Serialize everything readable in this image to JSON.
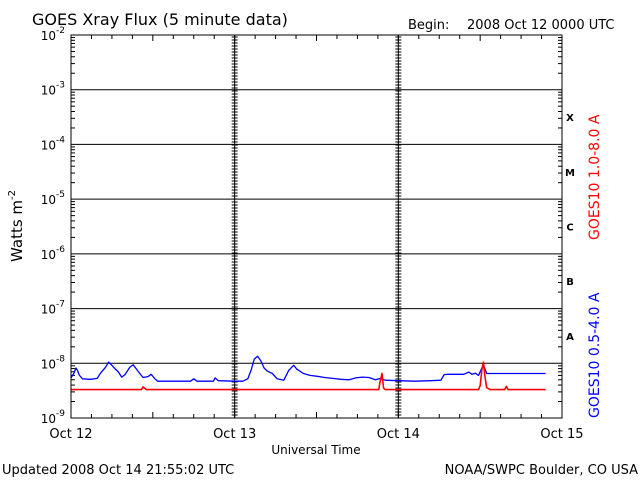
{
  "header": {
    "title": "GOES Xray Flux (5 minute data)",
    "begin_label": "Begin:",
    "begin_value": "2008 Oct 12 0000 UTC"
  },
  "footer": {
    "updated": "Updated 2008 Oct 14 21:55:02 UTC",
    "credit": "NOAA/SWPC Boulder, CO USA"
  },
  "colors": {
    "long_channel": "#ff0000",
    "short_channel": "#0000ff",
    "grid": "#000000"
  },
  "chart_data": {
    "type": "line",
    "title": "GOES Xray Flux (5 minute data)",
    "xlabel": "Universal Time",
    "ylabel_base": "Watts m",
    "ylabel_exp": "-2",
    "y_scale": "log",
    "ylim": [
      1e-09,
      0.01
    ],
    "xlim": [
      "2008-10-12 00:00",
      "2008-10-15 00:00"
    ],
    "x_ticks": [
      {
        "label": "Oct 12",
        "day": 12
      },
      {
        "label": "Oct 13",
        "day": 13
      },
      {
        "label": "Oct 14",
        "day": 14
      },
      {
        "label": "Oct 15",
        "day": 15
      }
    ],
    "y_ticks": [
      {
        "base": "10",
        "exp": "-2",
        "value": 0.01
      },
      {
        "base": "10",
        "exp": "-3",
        "value": 0.001
      },
      {
        "base": "10",
        "exp": "-4",
        "value": 0.0001
      },
      {
        "base": "10",
        "exp": "-5",
        "value": 1e-05
      },
      {
        "base": "10",
        "exp": "-6",
        "value": 1e-06
      },
      {
        "base": "10",
        "exp": "-7",
        "value": 1e-07
      },
      {
        "base": "10",
        "exp": "-8",
        "value": 1e-08
      },
      {
        "base": "10",
        "exp": "-9",
        "value": 1e-09
      }
    ],
    "flare_classes": [
      {
        "label": "X",
        "low": 0.0001,
        "high": 0.001
      },
      {
        "label": "M",
        "low": 1e-05,
        "high": 0.0001
      },
      {
        "label": "C",
        "low": 1e-06,
        "high": 1e-05
      },
      {
        "label": "B",
        "low": 1e-07,
        "high": 1e-06
      },
      {
        "label": "A",
        "low": 1e-08,
        "high": 1e-07
      }
    ],
    "grid": true,
    "series": [
      {
        "name": "GOES10 1.0-8.0 A",
        "color": "#ff0000",
        "points": [
          [
            12.0,
            3.3e-09
          ],
          [
            12.43,
            3.3e-09
          ],
          [
            12.44,
            3.7e-09
          ],
          [
            12.46,
            3.3e-09
          ],
          [
            13.88,
            3.3e-09
          ],
          [
            13.89,
            4.8e-09
          ],
          [
            13.9,
            6.5e-09
          ],
          [
            13.91,
            3.5e-09
          ],
          [
            13.92,
            3.3e-09
          ],
          [
            14.49,
            3.3e-09
          ],
          [
            14.5,
            3.9e-09
          ],
          [
            14.51,
            7.5e-09
          ],
          [
            14.52,
            1.05e-08
          ],
          [
            14.53,
            5.5e-09
          ],
          [
            14.54,
            3.6e-09
          ],
          [
            14.56,
            3.3e-09
          ],
          [
            14.65,
            3.3e-09
          ],
          [
            14.66,
            3.8e-09
          ],
          [
            14.67,
            3.3e-09
          ],
          [
            14.9,
            3.3e-09
          ]
        ]
      },
      {
        "name": "GOES10 0.5-4.0 A",
        "color": "#0000ff",
        "points": [
          [
            12.0,
            5.4e-09
          ],
          [
            12.02,
            6.8e-09
          ],
          [
            12.03,
            8.2e-09
          ],
          [
            12.04,
            7.4e-09
          ],
          [
            12.05,
            6.1e-09
          ],
          [
            12.07,
            5.2e-09
          ],
          [
            12.12,
            5.1e-09
          ],
          [
            12.16,
            5.3e-09
          ],
          [
            12.18,
            6.6e-09
          ],
          [
            12.21,
            8.4e-09
          ],
          [
            12.23,
            1.05e-08
          ],
          [
            12.25,
            9.2e-09
          ],
          [
            12.27,
            7.9e-09
          ],
          [
            12.29,
            6.9e-09
          ],
          [
            12.31,
            5.6e-09
          ],
          [
            12.33,
            6.2e-09
          ],
          [
            12.36,
            8.5e-09
          ],
          [
            12.38,
            9.4e-09
          ],
          [
            12.41,
            7.1e-09
          ],
          [
            12.44,
            5.5e-09
          ],
          [
            12.47,
            5.7e-09
          ],
          [
            12.49,
            6.3e-09
          ],
          [
            12.51,
            5.3e-09
          ],
          [
            12.53,
            4.7e-09
          ],
          [
            12.73,
            4.7e-09
          ],
          [
            12.75,
            5.2e-09
          ],
          [
            12.77,
            4.7e-09
          ],
          [
            12.87,
            4.7e-09
          ],
          [
            12.88,
            5.4e-09
          ],
          [
            12.9,
            4.8e-09
          ],
          [
            13.0,
            4.7e-09
          ],
          [
            13.05,
            4.7e-09
          ],
          [
            13.08,
            5.2e-09
          ],
          [
            13.1,
            7.4e-09
          ],
          [
            13.12,
            1.2e-08
          ],
          [
            13.14,
            1.35e-08
          ],
          [
            13.16,
            1.1e-08
          ],
          [
            13.18,
            8.2e-09
          ],
          [
            13.2,
            7.2e-09
          ],
          [
            13.23,
            6.5e-09
          ],
          [
            13.26,
            5.2e-09
          ],
          [
            13.3,
            4.9e-09
          ],
          [
            13.33,
            7.4e-09
          ],
          [
            13.36,
            9.2e-09
          ],
          [
            13.38,
            7.8e-09
          ],
          [
            13.42,
            6.5e-09
          ],
          [
            13.46,
            6e-09
          ],
          [
            13.5,
            5.8e-09
          ],
          [
            13.55,
            5.5e-09
          ],
          [
            13.6,
            5.3e-09
          ],
          [
            13.65,
            5.1e-09
          ],
          [
            13.7,
            5e-09
          ],
          [
            13.74,
            5.4e-09
          ],
          [
            13.78,
            5.6e-09
          ],
          [
            13.82,
            5.5e-09
          ],
          [
            13.86,
            5e-09
          ],
          [
            13.89,
            5.3e-09
          ],
          [
            13.92,
            4.9e-09
          ],
          [
            14.0,
            4.8e-09
          ],
          [
            14.1,
            4.7e-09
          ],
          [
            14.2,
            4.8e-09
          ],
          [
            14.26,
            4.9e-09
          ],
          [
            14.28,
            6.2e-09
          ],
          [
            14.3,
            6.3e-09
          ],
          [
            14.4,
            6.3e-09
          ],
          [
            14.43,
            6.9e-09
          ],
          [
            14.45,
            6.3e-09
          ],
          [
            14.47,
            6.6e-09
          ],
          [
            14.49,
            6e-09
          ],
          [
            14.52,
            9.4e-09
          ],
          [
            14.54,
            6.5e-09
          ],
          [
            14.9,
            6.5e-09
          ]
        ]
      }
    ]
  }
}
